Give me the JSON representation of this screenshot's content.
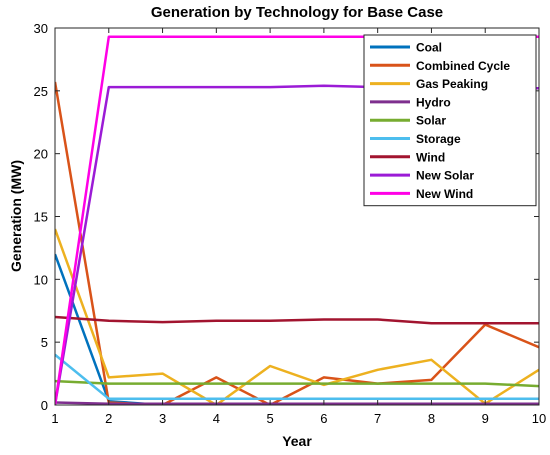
{
  "chart_data": {
    "type": "line",
    "title": "Generation by Technology for Base Case",
    "xlabel": "Year",
    "ylabel": "Generation (MW)",
    "xlim": [
      1,
      10
    ],
    "ylim": [
      0,
      30
    ],
    "x": [
      1,
      2,
      3,
      4,
      5,
      6,
      7,
      8,
      9,
      10
    ],
    "xticks": [
      1,
      2,
      3,
      4,
      5,
      6,
      7,
      8,
      9,
      10
    ],
    "yticks": [
      0,
      5,
      10,
      15,
      20,
      25,
      30
    ],
    "grid": false,
    "legend_position": "top-right",
    "series": [
      {
        "name": "Coal",
        "color": "#0072BD",
        "values": [
          12.0,
          0.3,
          0.0,
          0.0,
          0.0,
          0.0,
          0.1,
          0.0,
          0.0,
          0.0
        ]
      },
      {
        "name": "Combined Cycle",
        "color": "#D95319",
        "values": [
          25.7,
          0.2,
          0.0,
          2.2,
          0.0,
          2.2,
          1.7,
          2.0,
          6.4,
          4.6
        ]
      },
      {
        "name": "Gas Peaking",
        "color": "#EDB120",
        "values": [
          14.0,
          2.2,
          2.5,
          0.0,
          3.1,
          1.6,
          2.8,
          3.6,
          0.1,
          2.8
        ]
      },
      {
        "name": "Hydro",
        "color": "#7E2F8E",
        "values": [
          0.2,
          0.1,
          0.1,
          0.1,
          0.1,
          0.1,
          0.1,
          0.1,
          0.1,
          0.1
        ]
      },
      {
        "name": "Solar",
        "color": "#77AC30",
        "values": [
          1.9,
          1.7,
          1.7,
          1.7,
          1.7,
          1.7,
          1.7,
          1.7,
          1.7,
          1.5
        ]
      },
      {
        "name": "Storage",
        "color": "#4DBEEE",
        "values": [
          4.0,
          0.5,
          0.5,
          0.5,
          0.5,
          0.5,
          0.5,
          0.5,
          0.5,
          0.5
        ]
      },
      {
        "name": "Wind",
        "color": "#A2142F",
        "values": [
          7.0,
          6.7,
          6.6,
          6.7,
          6.7,
          6.8,
          6.8,
          6.5,
          6.5,
          6.5
        ]
      },
      {
        "name": "New Solar",
        "color": "#9B1BD6",
        "values": [
          0.0,
          25.3,
          25.3,
          25.3,
          25.3,
          25.4,
          25.3,
          25.3,
          25.2,
          25.2
        ]
      },
      {
        "name": "New Wind",
        "color": "#FF00E6",
        "values": [
          0.0,
          29.3,
          29.3,
          29.3,
          29.3,
          29.3,
          29.3,
          29.3,
          29.3,
          29.3
        ]
      }
    ]
  }
}
